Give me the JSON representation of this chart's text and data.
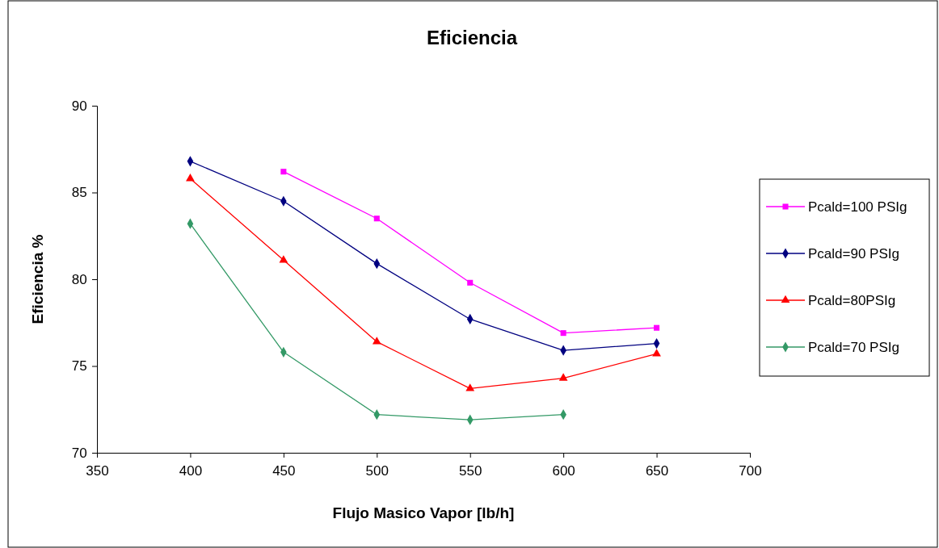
{
  "chart_data": {
    "type": "line",
    "title": "Eficiencia",
    "xlabel": "Flujo Masico Vapor [lb/h]",
    "ylabel": "Eficiencia %",
    "x": [
      400,
      450,
      500,
      550,
      600,
      650
    ],
    "xlim": [
      350,
      700
    ],
    "xticks": [
      350,
      400,
      450,
      500,
      550,
      600,
      650,
      700
    ],
    "ylim": [
      70,
      90
    ],
    "yticks": [
      70,
      75,
      80,
      85,
      90
    ],
    "grid": false,
    "legend": "right",
    "series": [
      {
        "name": "Pcald=100 PSIg",
        "color": "#ff00ff",
        "marker": "square",
        "values": [
          null,
          86.2,
          83.5,
          79.8,
          76.9,
          77.2
        ]
      },
      {
        "name": "Pcald=90 PSIg",
        "color": "#000080",
        "marker": "diamond",
        "values": [
          86.8,
          84.5,
          80.9,
          77.7,
          75.9,
          76.3
        ]
      },
      {
        "name": "Pcald=80PSIg",
        "color": "#ff0000",
        "marker": "triangle",
        "values": [
          85.8,
          81.1,
          76.4,
          73.7,
          74.3,
          75.7
        ]
      },
      {
        "name": "Pcald=70 PSIg",
        "color": "#339966",
        "marker": "diamond",
        "values": [
          83.2,
          75.8,
          72.2,
          71.9,
          72.2,
          null
        ]
      }
    ]
  }
}
